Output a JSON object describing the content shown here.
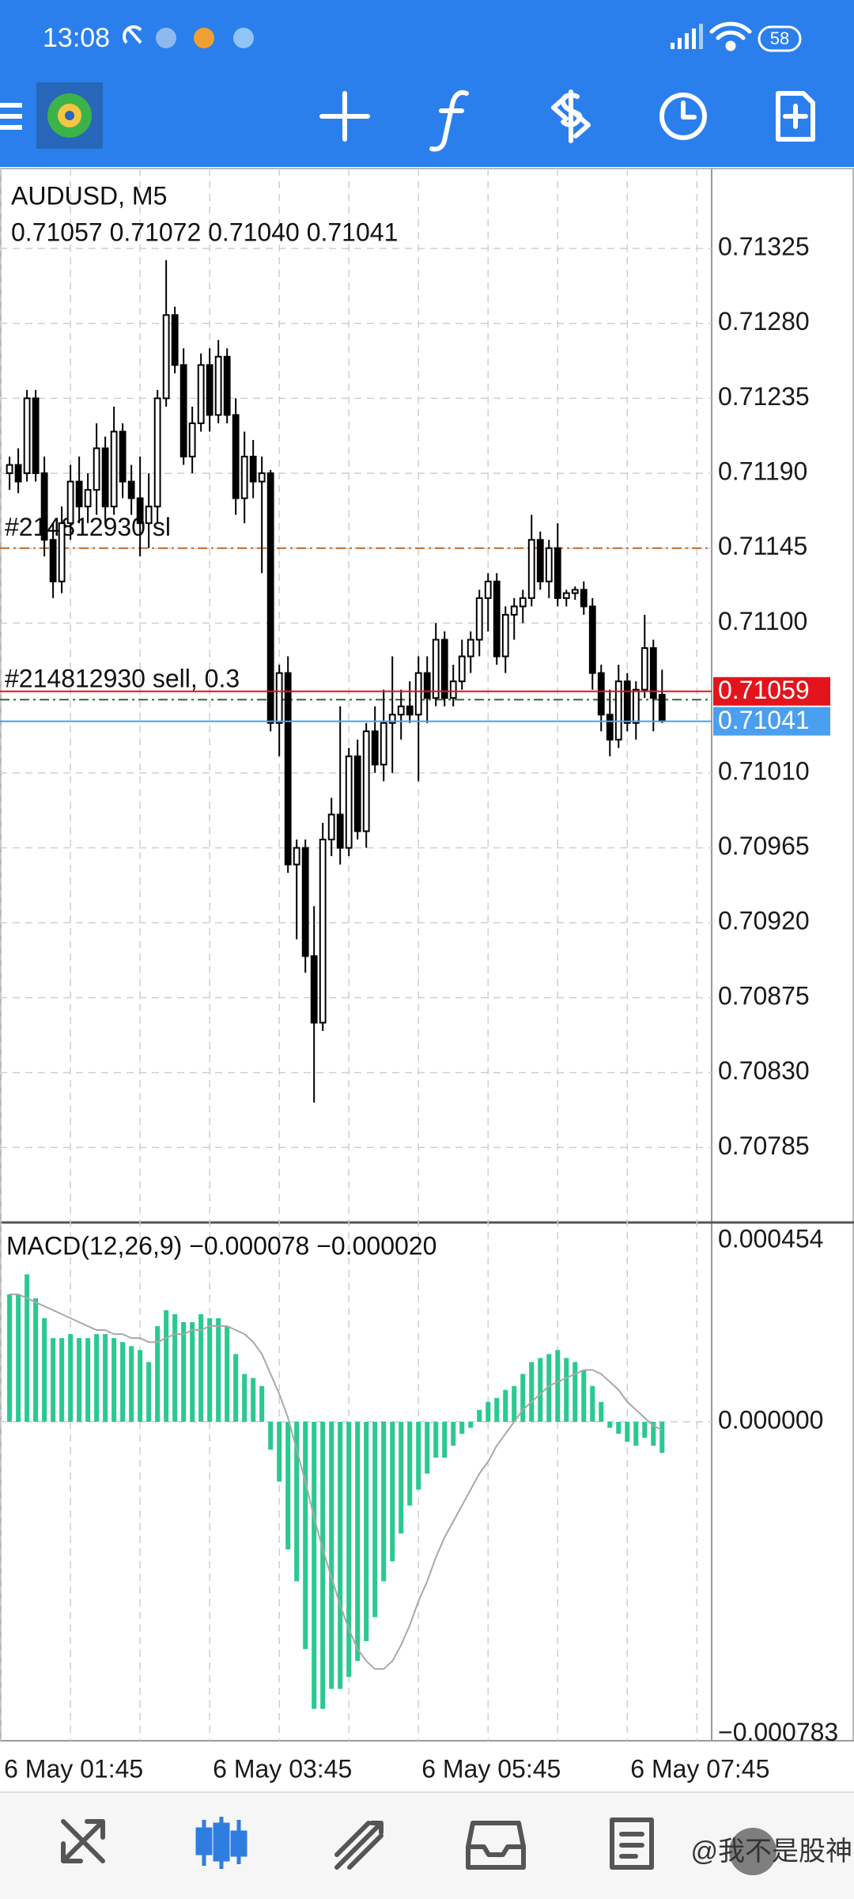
{
  "status_bar": {
    "time": "13:08",
    "battery": "58"
  },
  "watermark": "@我不是股神",
  "chart_data": [
    {
      "type": "candlestick",
      "title": "AUDUSD, M5",
      "subtitle": "0.71057 0.71072 0.71040 0.71041",
      "open": [
        0.7119,
        0.71195,
        0.7119,
        0.71235,
        0.7119,
        0.7115,
        0.71125,
        0.7116,
        0.71185,
        0.7117,
        0.7118,
        0.71205,
        0.7117,
        0.71215,
        0.71185,
        0.71175,
        0.7116,
        0.7117,
        0.71235,
        0.71285,
        0.71255,
        0.712,
        0.7122,
        0.71255,
        0.71225,
        0.7126,
        0.71225,
        0.71175,
        0.712,
        0.71185,
        0.7119,
        0.7104,
        0.7107,
        0.70955,
        0.70965,
        0.709,
        0.7086,
        0.7097,
        0.70985,
        0.70965,
        0.7102,
        0.70975,
        0.71035,
        0.71015,
        0.7104,
        0.71045,
        0.7105,
        0.71045,
        0.7107,
        0.71055,
        0.7109,
        0.71055,
        0.71065,
        0.7108,
        0.7109,
        0.71115,
        0.71125,
        0.7108,
        0.71105,
        0.7111,
        0.71115,
        0.7115,
        0.71125,
        0.71145,
        0.71115,
        0.71118,
        0.7112,
        0.7111,
        0.7107,
        0.71045,
        0.7103,
        0.71065,
        0.7104,
        0.7106,
        0.71085,
        0.71057
      ],
      "high": [
        0.712,
        0.71205,
        0.7124,
        0.7124,
        0.712,
        0.7116,
        0.7117,
        0.71195,
        0.712,
        0.7119,
        0.7122,
        0.71212,
        0.7123,
        0.7122,
        0.71195,
        0.712,
        0.7119,
        0.7124,
        0.71318,
        0.7129,
        0.71265,
        0.7123,
        0.71262,
        0.71265,
        0.7127,
        0.71265,
        0.71235,
        0.71215,
        0.7121,
        0.712,
        0.71192,
        0.71075,
        0.7108,
        0.7097,
        0.7097,
        0.7093,
        0.7098,
        0.70995,
        0.7105,
        0.71025,
        0.7103,
        0.7104,
        0.7105,
        0.7106,
        0.7108,
        0.7106,
        0.71065,
        0.7108,
        0.7108,
        0.711,
        0.71095,
        0.71075,
        0.7109,
        0.71095,
        0.7112,
        0.7113,
        0.7113,
        0.7111,
        0.71115,
        0.7112,
        0.71165,
        0.71155,
        0.7115,
        0.7116,
        0.7112,
        0.71122,
        0.71125,
        0.71115,
        0.71075,
        0.7106,
        0.71075,
        0.7107,
        0.71065,
        0.71105,
        0.7109,
        0.71072
      ],
      "low": [
        0.7118,
        0.71178,
        0.71185,
        0.71185,
        0.7114,
        0.71115,
        0.71118,
        0.7115,
        0.7116,
        0.7116,
        0.71165,
        0.7116,
        0.71165,
        0.71175,
        0.71165,
        0.7114,
        0.71145,
        0.7116,
        0.7123,
        0.7125,
        0.71195,
        0.7119,
        0.71215,
        0.71215,
        0.7122,
        0.7122,
        0.71165,
        0.7116,
        0.71175,
        0.7113,
        0.71035,
        0.7102,
        0.7095,
        0.7091,
        0.7089,
        0.70812,
        0.70855,
        0.7096,
        0.70955,
        0.7096,
        0.7097,
        0.70965,
        0.7101,
        0.71005,
        0.7101,
        0.7103,
        0.7104,
        0.71005,
        0.7104,
        0.7105,
        0.7105,
        0.7105,
        0.7106,
        0.7107,
        0.7108,
        0.71095,
        0.71075,
        0.7107,
        0.7109,
        0.711,
        0.7111,
        0.7112,
        0.71115,
        0.7111,
        0.7111,
        0.71114,
        0.71105,
        0.7106,
        0.71035,
        0.7102,
        0.71025,
        0.71035,
        0.7103,
        0.71055,
        0.71035,
        0.7104
      ],
      "close": [
        0.71195,
        0.71185,
        0.71235,
        0.7119,
        0.7115,
        0.71125,
        0.7116,
        0.71185,
        0.7117,
        0.7118,
        0.71205,
        0.7117,
        0.71215,
        0.71185,
        0.71175,
        0.7116,
        0.7117,
        0.71235,
        0.71285,
        0.71255,
        0.712,
        0.7122,
        0.71255,
        0.71225,
        0.7126,
        0.71225,
        0.71175,
        0.712,
        0.71185,
        0.7119,
        0.7104,
        0.7107,
        0.70955,
        0.70965,
        0.709,
        0.7086,
        0.7097,
        0.70985,
        0.70965,
        0.7102,
        0.70975,
        0.71035,
        0.71015,
        0.7104,
        0.71045,
        0.7105,
        0.71045,
        0.7107,
        0.71055,
        0.7109,
        0.71055,
        0.71065,
        0.7108,
        0.7109,
        0.71115,
        0.71125,
        0.7108,
        0.71105,
        0.7111,
        0.71115,
        0.7115,
        0.71125,
        0.71145,
        0.71115,
        0.71118,
        0.7112,
        0.7111,
        0.7107,
        0.71045,
        0.7103,
        0.71065,
        0.7104,
        0.7106,
        0.71085,
        0.71055,
        0.71041
      ],
      "up_color": "#ffffff",
      "down_color": "#000000",
      "xlim": [
        -1.1,
        80.7
      ],
      "xticks": [
        {
          "value": -1,
          "label": "6 May 01:45"
        },
        {
          "value": 23,
          "label": "6 May 03:45"
        },
        {
          "value": 47,
          "label": "6 May 05:45"
        },
        {
          "value": 71,
          "label": "6 May 07:45"
        }
      ],
      "ylim": [
        0.7074,
        0.71373
      ],
      "yticks": [
        0.71325,
        {
          "value": 0.7128,
          "label": "0.71280"
        },
        0.71235,
        {
          "value": 0.7119,
          "label": "0.71190"
        },
        0.71145,
        {
          "value": 0.711,
          "label": "0.71100"
        },
        {
          "value": 0.7101,
          "label": "0.71010"
        },
        0.70965,
        {
          "value": 0.7092,
          "label": "0.70920"
        },
        0.70875,
        {
          "value": 0.7083,
          "label": "0.70830"
        },
        0.70785
      ],
      "grid": true,
      "order_lines": [
        {
          "label": "#214812930 sl",
          "value": 0.71145,
          "color": "#c2662a"
        },
        {
          "label": "#214812930 sell, 0.3",
          "value": 0.71054,
          "color": "#2e6b2e"
        }
      ],
      "price_tags": [
        {
          "value": 0.71059,
          "color": "#e3141b"
        },
        {
          "value": 0.71041,
          "color": "#4a9ff0"
        }
      ]
    },
    {
      "type": "macd",
      "title": "MACD(12,26,9) −0.000078 −0.000020",
      "values": [
        0.00032,
        0.00032,
        0.00037,
        0.00031,
        0.00026,
        0.00021,
        0.00021,
        0.00022,
        0.00021,
        0.00021,
        0.00022,
        0.00022,
        0.00021,
        0.0002,
        0.00019,
        0.00018,
        0.00015,
        0.00024,
        0.00028,
        0.00027,
        0.00025,
        0.00025,
        0.00027,
        0.00026,
        0.00026,
        0.00024,
        0.00017,
        0.00012,
        0.00011,
        9e-05,
        -7e-05,
        -0.00015,
        -0.00032,
        -0.0004,
        -0.00057,
        -0.00072,
        -0.00072,
        -0.00067,
        -0.00067,
        -0.00064,
        -0.0006,
        -0.00055,
        -0.00049,
        -0.0004,
        -0.00035,
        -0.00028,
        -0.00021,
        -0.00017,
        -0.00013,
        -9e-05,
        -9e-05,
        -6e-05,
        -3e-05,
        -1.5e-05,
        3e-05,
        5e-05,
        6e-05,
        8e-05,
        9e-05,
        0.00012,
        0.00015,
        0.00016,
        0.00017,
        0.00018,
        0.00016,
        0.00015,
        0.00013,
        9e-05,
        5e-05,
        -1.5e-05,
        -3e-05,
        -5e-05,
        -6e-05,
        -4e-05,
        -6e-05,
        -7.8e-05
      ],
      "color": "#2bc98f",
      "signal": [
        0.00032,
        0.00032,
        0.00031,
        0.0003,
        0.00029,
        0.00028,
        0.00027,
        0.00026,
        0.00025,
        0.00024,
        0.00023,
        0.00023,
        0.00022,
        0.00022,
        0.00021,
        0.00021,
        0.0002,
        0.0002,
        0.00021,
        0.00022,
        0.00022,
        0.00023,
        0.00023,
        0.00024,
        0.00024,
        0.00024,
        0.00023,
        0.00022,
        0.0002,
        0.00017,
        0.00012,
        7e-05,
        1e-05,
        -7e-05,
        -0.00015,
        -0.00024,
        -0.00032,
        -0.00039,
        -0.00046,
        -0.00052,
        -0.00057,
        -0.0006,
        -0.00062,
        -0.00062,
        -0.0006,
        -0.00056,
        -0.00051,
        -0.00045,
        -0.0004,
        -0.00034,
        -0.00029,
        -0.00025,
        -0.00021,
        -0.00017,
        -0.00013,
        -0.0001,
        -6e-05,
        -3e-05,
        0,
        3e-05,
        5e-05,
        7e-05,
        9e-05,
        0.0001,
        0.00011,
        0.00012,
        0.00013,
        0.00013,
        0.00012,
        0.0001,
        8e-05,
        5e-05,
        3e-05,
        1e-05,
        -1e-05,
        -2e-05
      ],
      "signal_color": "#a8a8a8",
      "xlim": [
        -1.1,
        80.7
      ],
      "ylim": [
        -0.0008,
        0.0005
      ],
      "yticks": [
        0.000454,
        {
          "value": 0,
          "label": "0.000000"
        },
        {
          "value": -0.000783,
          "label": "−0.000783"
        }
      ],
      "zero_line": true
    }
  ]
}
